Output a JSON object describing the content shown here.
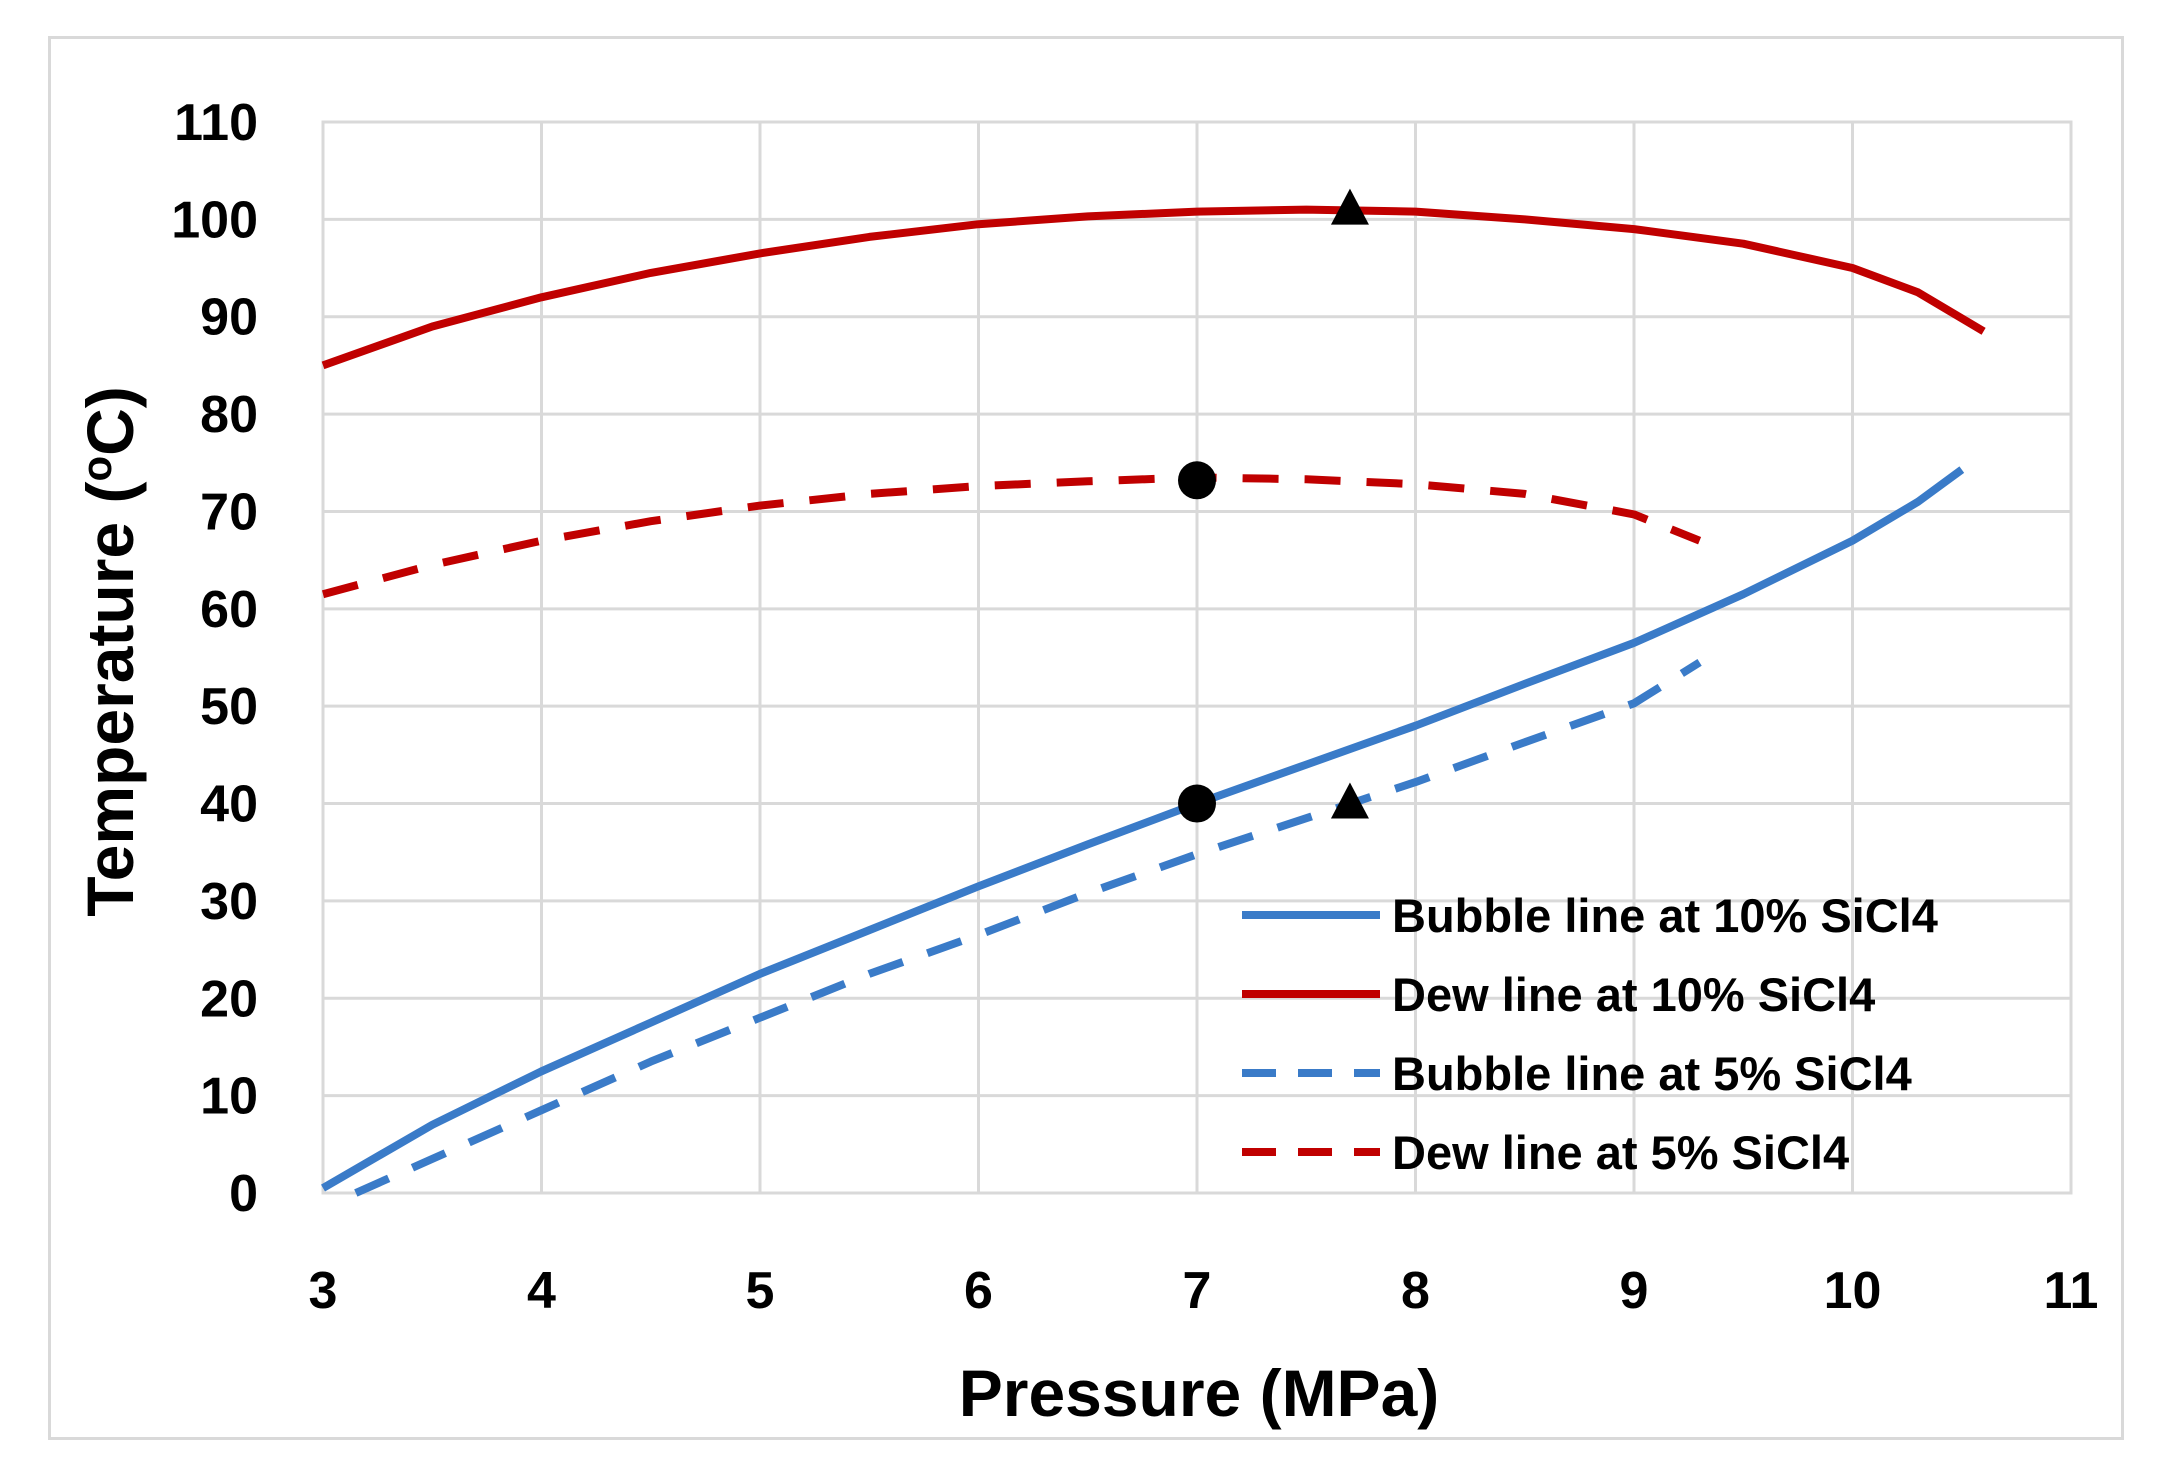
{
  "chart_data": {
    "type": "line",
    "title": "",
    "xlabel": "Pressure (MPa)",
    "ylabel_main": "Temperature (",
    "ylabel_sup": "o",
    "ylabel_end": "C)",
    "xlim": [
      3,
      11
    ],
    "ylim": [
      0,
      110
    ],
    "xticks": [
      3,
      4,
      5,
      6,
      7,
      8,
      9,
      10,
      11
    ],
    "yticks": [
      0,
      10,
      20,
      30,
      40,
      50,
      60,
      70,
      80,
      90,
      100,
      110
    ],
    "grid": true,
    "legend_position": "bottom-right",
    "series": [
      {
        "name": "Bubble line at 10% SiCl4",
        "color": "#3a7bc8",
        "style": "solid",
        "points": [
          [
            3.0,
            0.5
          ],
          [
            3.5,
            7
          ],
          [
            4.0,
            12.5
          ],
          [
            4.5,
            17.5
          ],
          [
            5.0,
            22.5
          ],
          [
            5.5,
            27
          ],
          [
            6.0,
            31.5
          ],
          [
            6.5,
            35.8
          ],
          [
            7.0,
            40
          ],
          [
            7.5,
            44
          ],
          [
            8.0,
            48
          ],
          [
            8.5,
            52.3
          ],
          [
            9.0,
            56.5
          ],
          [
            9.5,
            61.5
          ],
          [
            10.0,
            67
          ],
          [
            10.3,
            71
          ],
          [
            10.5,
            74.3
          ]
        ]
      },
      {
        "name": "Dew line at 10% SiCl4",
        "color": "#c00000",
        "style": "solid",
        "points": [
          [
            3.0,
            85
          ],
          [
            3.5,
            89
          ],
          [
            4.0,
            92
          ],
          [
            4.5,
            94.5
          ],
          [
            5.0,
            96.5
          ],
          [
            5.5,
            98.2
          ],
          [
            6.0,
            99.5
          ],
          [
            6.5,
            100.3
          ],
          [
            7.0,
            100.8
          ],
          [
            7.5,
            101
          ],
          [
            8.0,
            100.8
          ],
          [
            8.5,
            100
          ],
          [
            9.0,
            99
          ],
          [
            9.5,
            97.5
          ],
          [
            10.0,
            95
          ],
          [
            10.3,
            92.5
          ],
          [
            10.6,
            88.5
          ]
        ]
      },
      {
        "name": "Bubble line at 5% SiCl4",
        "color": "#3a7bc8",
        "style": "dashed",
        "points": [
          [
            3.15,
            0
          ],
          [
            3.5,
            3.5
          ],
          [
            4.0,
            8.5
          ],
          [
            4.5,
            13.5
          ],
          [
            5.0,
            18
          ],
          [
            5.5,
            22.5
          ],
          [
            6.0,
            26.5
          ],
          [
            6.5,
            30.8
          ],
          [
            7.0,
            34.8
          ],
          [
            7.5,
            38.5
          ],
          [
            8.0,
            42.2
          ],
          [
            8.5,
            46.3
          ],
          [
            9.0,
            50.3
          ],
          [
            9.3,
            54.5
          ]
        ]
      },
      {
        "name": "Dew line at 5% SiCl4",
        "color": "#c00000",
        "style": "dashed",
        "points": [
          [
            3.0,
            61.5
          ],
          [
            3.5,
            64.5
          ],
          [
            4.0,
            67
          ],
          [
            4.5,
            69
          ],
          [
            5.0,
            70.6
          ],
          [
            5.5,
            71.8
          ],
          [
            6.0,
            72.6
          ],
          [
            6.5,
            73.1
          ],
          [
            7.0,
            73.5
          ],
          [
            7.5,
            73.3
          ],
          [
            8.0,
            72.8
          ],
          [
            8.5,
            71.8
          ],
          [
            9.0,
            69.7
          ],
          [
            9.3,
            67
          ]
        ]
      }
    ],
    "markers": [
      {
        "shape": "triangle",
        "x": 7.7,
        "y": 101
      },
      {
        "shape": "circle",
        "x": 7.0,
        "y": 73.2
      },
      {
        "shape": "circle",
        "x": 7.0,
        "y": 40
      },
      {
        "shape": "triangle",
        "x": 7.7,
        "y": 40
      }
    ]
  }
}
